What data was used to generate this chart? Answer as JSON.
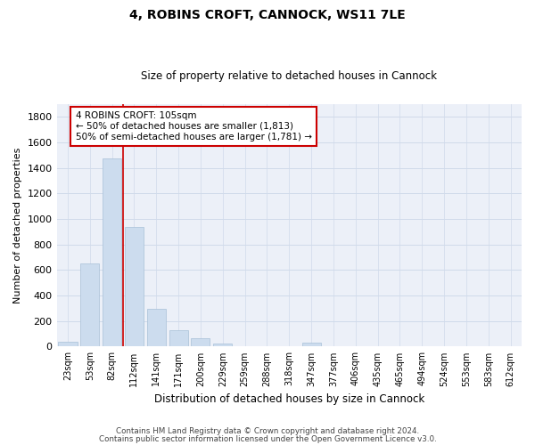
{
  "title1": "4, ROBINS CROFT, CANNOCK, WS11 7LE",
  "title2": "Size of property relative to detached houses in Cannock",
  "xlabel": "Distribution of detached houses by size in Cannock",
  "ylabel": "Number of detached properties",
  "bar_color": "#ccdcee",
  "bar_edge_color": "#a8c0d8",
  "categories": [
    "23sqm",
    "53sqm",
    "82sqm",
    "112sqm",
    "141sqm",
    "171sqm",
    "200sqm",
    "229sqm",
    "259sqm",
    "288sqm",
    "318sqm",
    "347sqm",
    "377sqm",
    "406sqm",
    "435sqm",
    "465sqm",
    "494sqm",
    "524sqm",
    "553sqm",
    "583sqm",
    "612sqm"
  ],
  "values": [
    40,
    650,
    1470,
    935,
    295,
    130,
    65,
    25,
    0,
    0,
    0,
    30,
    0,
    0,
    0,
    0,
    0,
    0,
    0,
    0,
    0
  ],
  "vline_color": "#cc0000",
  "vline_pos": 2.5,
  "annotation_line1": "4 ROBINS CROFT: 105sqm",
  "annotation_line2": "← 50% of detached houses are smaller (1,813)",
  "annotation_line3": "50% of semi-detached houses are larger (1,781) →",
  "ylim": [
    0,
    1900
  ],
  "yticks": [
    0,
    200,
    400,
    600,
    800,
    1000,
    1200,
    1400,
    1600,
    1800
  ],
  "footer1": "Contains HM Land Registry data © Crown copyright and database right 2024.",
  "footer2": "Contains public sector information licensed under the Open Government Licence v3.0.",
  "grid_color": "#d0daea",
  "bg_color": "#ecf0f8"
}
